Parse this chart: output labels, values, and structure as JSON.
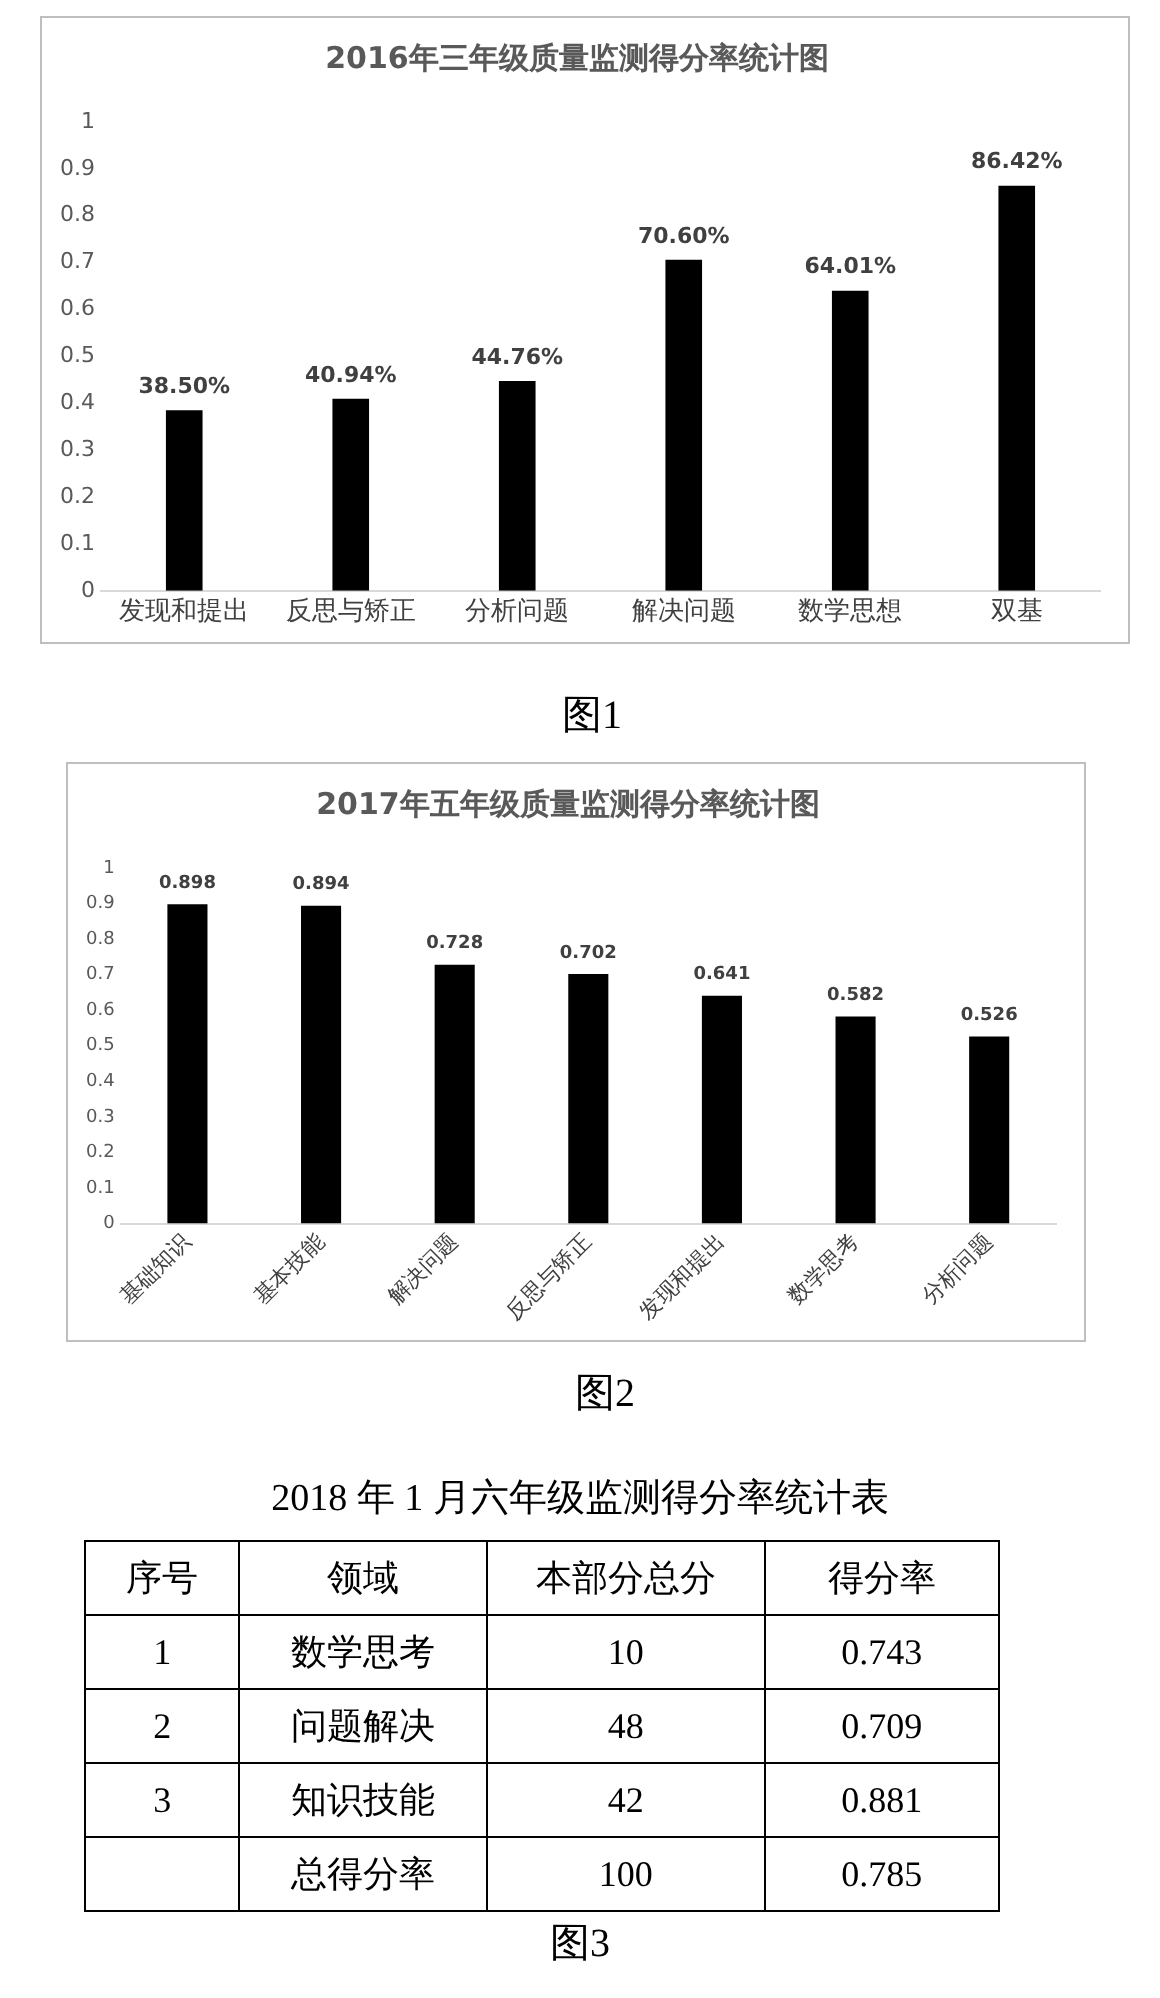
{
  "chart_data": [
    {
      "type": "bar",
      "title": "2016年三年级质量监测得分率统计图",
      "categories": [
        "发现和提出",
        "反思与矫正",
        "分析问题",
        "解决问题",
        "数学思想",
        "双基"
      ],
      "values": [
        0.385,
        0.4094,
        0.4476,
        0.706,
        0.6401,
        0.8642
      ],
      "color": "#000000",
      "value_labels": [
        "38.50%",
        "40.94%",
        "44.76%",
        "70.60%",
        "64.01%",
        "86.42%"
      ],
      "ylim": [
        0,
        1
      ],
      "yticks": [
        0,
        0.1,
        0.2,
        0.3,
        0.4,
        0.5,
        0.6,
        0.7,
        0.8,
        0.9,
        1
      ],
      "grid": false,
      "legend": false,
      "annotations": [
        "图1"
      ]
    },
    {
      "type": "bar",
      "title": "2017年五年级质量监测得分率统计图",
      "categories": [
        "基础知识",
        "基本技能",
        "解决问题",
        "反思与矫正",
        "发现和提出",
        "数学思考",
        "分析问题"
      ],
      "values": [
        0.898,
        0.894,
        0.728,
        0.702,
        0.641,
        0.582,
        0.526
      ],
      "color": "#000000",
      "data_labels": true,
      "ylim": [
        0,
        1
      ],
      "yticks": [
        0,
        0.1,
        0.2,
        0.3,
        0.4,
        0.5,
        0.6,
        0.7,
        0.8,
        0.9,
        1
      ],
      "grid": false,
      "legend": false,
      "annotations": [
        "图2"
      ]
    },
    {
      "type": "other",
      "title": "2018 年 1 月六年级监测得分率统计表",
      "annotations": [
        "序号",
        "领域",
        "本部分总分",
        "得分率",
        "1",
        "数学思考",
        "10",
        "0.743",
        "2",
        "问题解决",
        "48",
        "0.709",
        "3",
        "知识技能",
        "42",
        "0.881",
        "总得分率",
        "100",
        "0.785",
        "图3"
      ]
    }
  ]
}
